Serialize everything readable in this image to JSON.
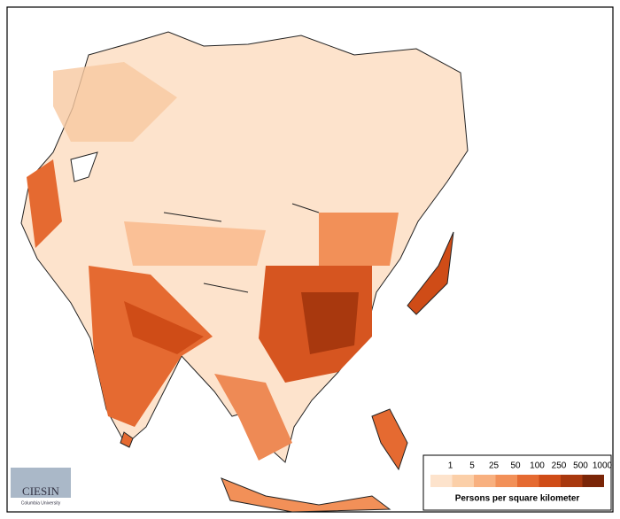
{
  "legend": {
    "ticks": [
      1,
      5,
      25,
      50,
      100,
      250,
      500,
      1000
    ],
    "colors": [
      "#fde3cc",
      "#fbcfa8",
      "#f8b07f",
      "#f29058",
      "#e56a31",
      "#cf4c17",
      "#a8380e",
      "#7a2507"
    ],
    "title": "Persons per square kilometer"
  },
  "logo": {
    "name": "CIESIN",
    "subtitle": "Columbia University"
  }
}
